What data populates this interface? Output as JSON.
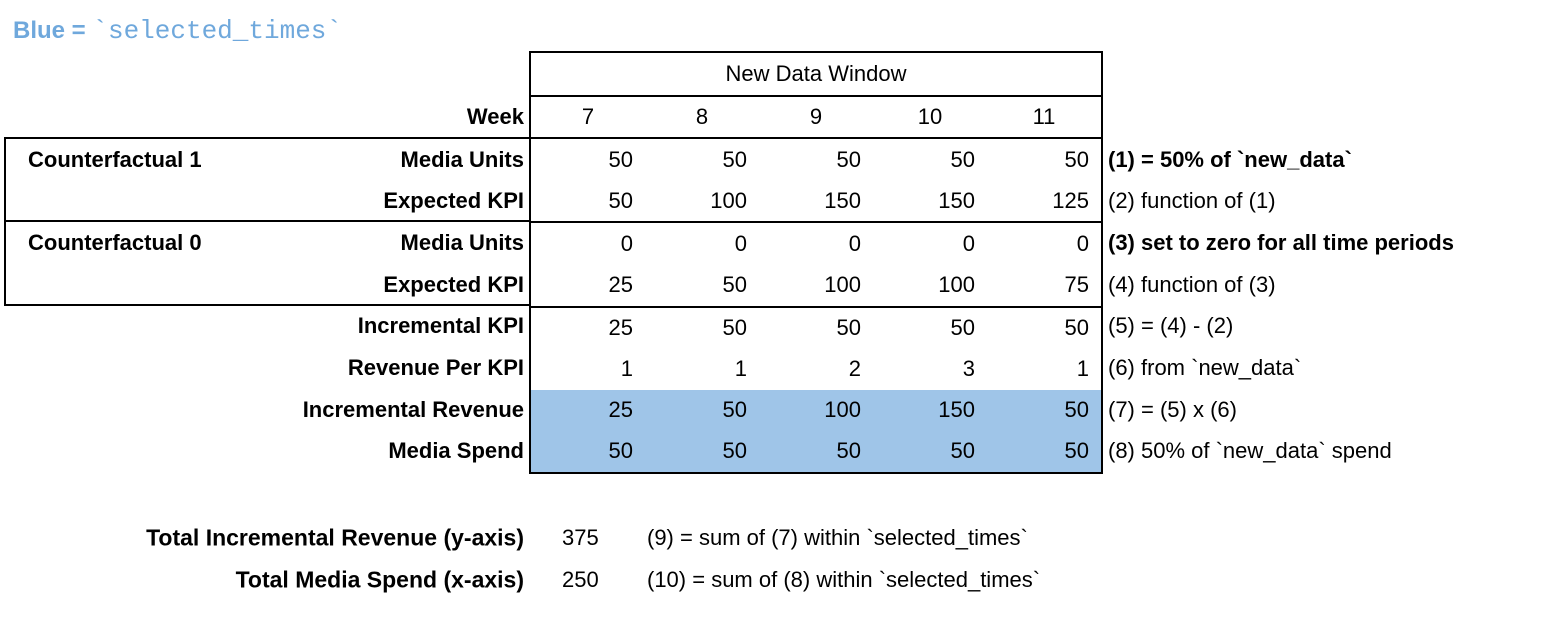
{
  "legend": {
    "prefix": "Blue = ",
    "code": "`selected_times`",
    "color": "#6fa8dc"
  },
  "colors": {
    "highlight": "#9fc5e8",
    "border": "#000000"
  },
  "table": {
    "header": "New Data Window",
    "week_label": "Week",
    "weeks": [
      "7",
      "8",
      "9",
      "10",
      "11"
    ],
    "groups": [
      {
        "label": "Counterfactual 1"
      },
      {
        "label": "Counterfactual 0"
      }
    ],
    "rows": [
      {
        "label": "Media Units",
        "values": [
          "50",
          "50",
          "50",
          "50",
          "50"
        ],
        "annotation": "(1) = 50% of `new_data`"
      },
      {
        "label": "Expected KPI",
        "values": [
          "50",
          "100",
          "150",
          "150",
          "125"
        ],
        "annotation": "(2) function of (1)"
      },
      {
        "label": "Media Units",
        "values": [
          "0",
          "0",
          "0",
          "0",
          "0"
        ],
        "annotation": "(3) set to zero for all time periods"
      },
      {
        "label": "Expected KPI",
        "values": [
          "25",
          "50",
          "100",
          "100",
          "75"
        ],
        "annotation": "(4) function of (3)"
      },
      {
        "label": "Incremental KPI",
        "values": [
          "25",
          "50",
          "50",
          "50",
          "50"
        ],
        "annotation": "(5) = (4) - (2)"
      },
      {
        "label": "Revenue Per KPI",
        "values": [
          "1",
          "1",
          "2",
          "3",
          "1"
        ],
        "annotation": "(6) from `new_data`"
      },
      {
        "label": "Incremental Revenue",
        "values": [
          "25",
          "50",
          "100",
          "150",
          "50"
        ],
        "annotation": "(7) = (5) x (6)"
      },
      {
        "label": "Media Spend",
        "values": [
          "50",
          "50",
          "50",
          "50",
          "50"
        ],
        "annotation": "(8) 50% of `new_data` spend"
      }
    ],
    "totals": [
      {
        "label": "Total Incremental Revenue (y-axis)",
        "value": "375",
        "annotation": "(9) = sum of (7) within `selected_times`"
      },
      {
        "label": "Total Media Spend (x-axis)",
        "value": "250",
        "annotation": "(10) = sum of (8) within `selected_times`"
      }
    ]
  }
}
